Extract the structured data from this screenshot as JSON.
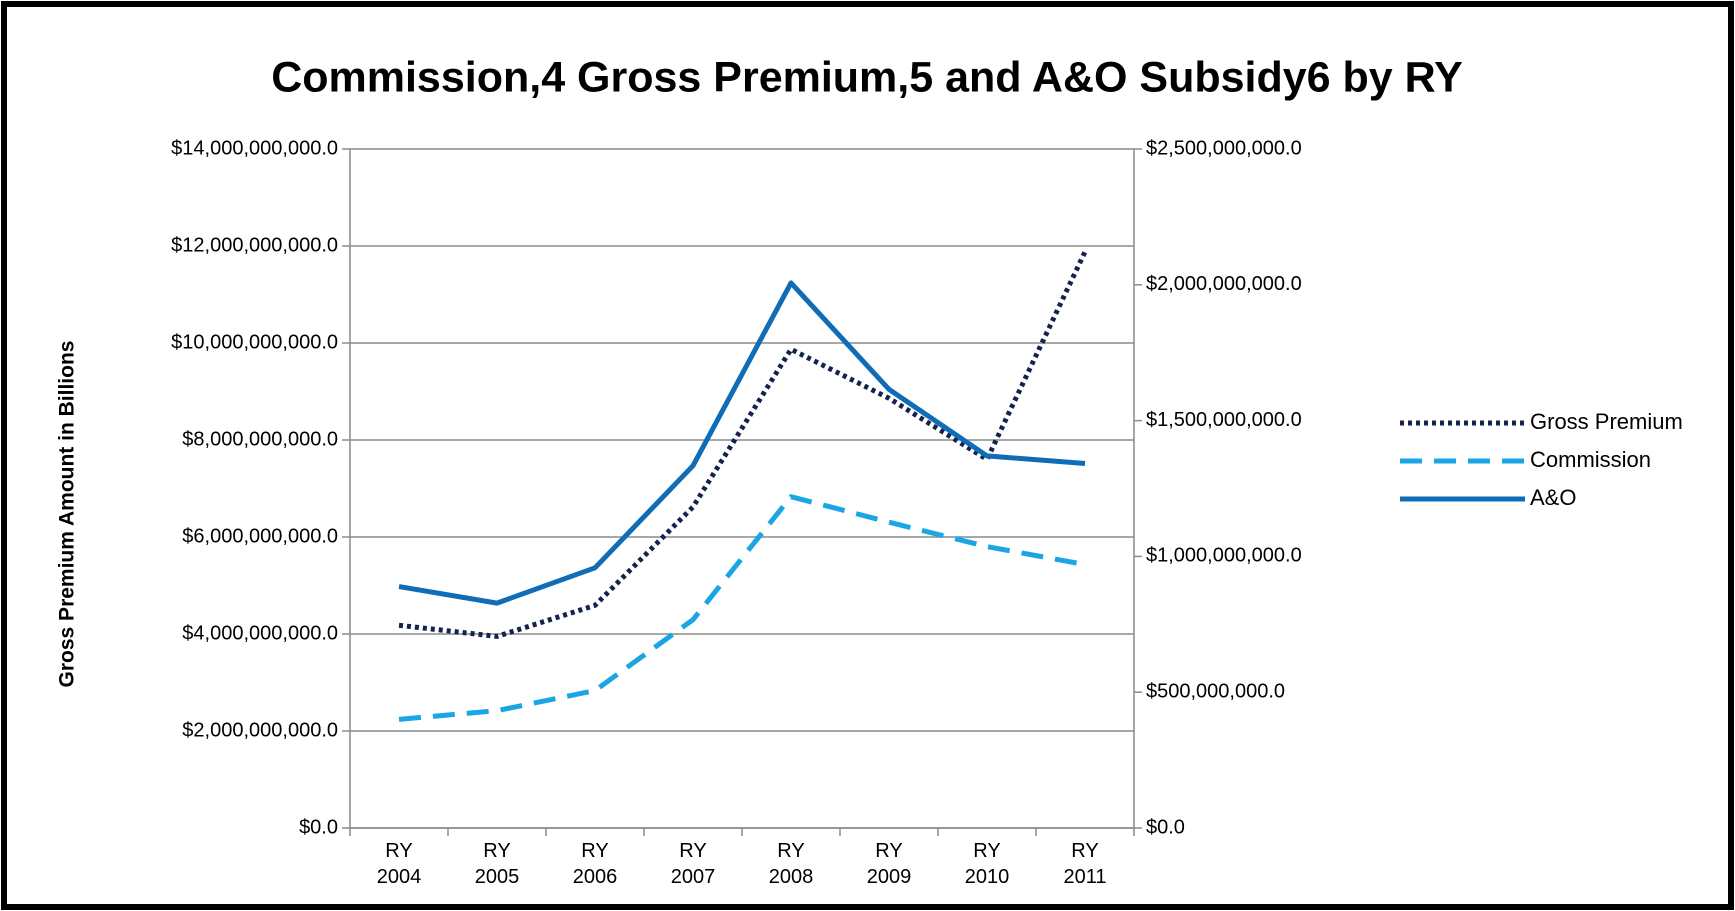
{
  "chart_data": {
    "type": "line",
    "title": "Commission,4 Gross Premium,5 and A&O Subsidy6 by RY",
    "ylabel": "Gross Premium Amount in Billions",
    "categories": [
      "RY 2004",
      "RY 2005",
      "RY 2006",
      "RY 2007",
      "RY 2008",
      "RY 2009",
      "RY 2010",
      "RY 2011"
    ],
    "series": [
      {
        "name": "Gross Premium",
        "color": "#14224f",
        "dash": "dotted",
        "axis": "y",
        "values": [
          4180000000,
          3950000000,
          4590000000,
          6620000000,
          9870000000,
          8860000000,
          7600000000,
          11880000000
        ]
      },
      {
        "name": "Commission",
        "color": "#1aa6e4",
        "dash": "dashed",
        "axis": "y2",
        "values": [
          400000000,
          432000000,
          506000000,
          767000000,
          1220000000,
          1126000000,
          1036000000,
          970000000
        ]
      },
      {
        "name": "A&O",
        "color": "#0f6cb6",
        "dash": "solid",
        "axis": "y2",
        "values": [
          889000000,
          828000000,
          958000000,
          1334000000,
          2007000000,
          1615000000,
          1370000000,
          1342000000
        ]
      }
    ],
    "ylim": [
      0,
      14000000000
    ],
    "yticks": [
      {
        "value": 0,
        "label": "$0.0"
      },
      {
        "value": 2000000000,
        "label": "$2,000,000,000.0"
      },
      {
        "value": 4000000000,
        "label": "$4,000,000,000.0"
      },
      {
        "value": 6000000000,
        "label": "$6,000,000,000.0"
      },
      {
        "value": 8000000000,
        "label": "$8,000,000,000.0"
      },
      {
        "value": 10000000000,
        "label": "$10,000,000,000.0"
      },
      {
        "value": 12000000000,
        "label": "$12,000,000,000.0"
      },
      {
        "value": 14000000000,
        "label": "$14,000,000,000.0"
      }
    ],
    "y2lim": [
      0,
      2500000000
    ],
    "y2ticks": [
      {
        "value": 0,
        "label": "$0.0"
      },
      {
        "value": 500000000,
        "label": "$500,000,000.0"
      },
      {
        "value": 1000000000,
        "label": "$1,000,000,000.0"
      },
      {
        "value": 1500000000,
        "label": "$1,500,000,000.0"
      },
      {
        "value": 2000000000,
        "label": "$2,000,000,000.0"
      },
      {
        "value": 2500000000,
        "label": "$2,500,000,000.0"
      }
    ],
    "grid": true,
    "legend": "right"
  }
}
